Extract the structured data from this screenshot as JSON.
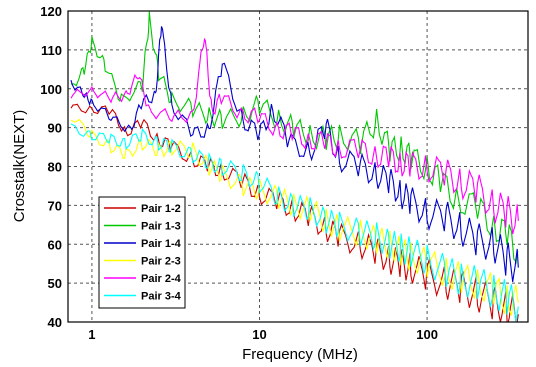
{
  "chart_data": {
    "type": "line",
    "title": "",
    "xlabel": "Frequency (MHz)",
    "ylabel": "Crosstalk(NEXT)",
    "xscale": "log",
    "xlim": [
      0.72,
      400
    ],
    "ylim": [
      40,
      120
    ],
    "xticks": [
      {
        "value": 1,
        "label": "1"
      },
      {
        "value": 10,
        "label": "10"
      },
      {
        "value": 100,
        "label": "100"
      }
    ],
    "yticks": [
      40,
      50,
      60,
      70,
      80,
      90,
      100,
      110,
      120
    ],
    "grid": true,
    "legend_position": "bottom-left",
    "series": [
      {
        "name": "Pair 1-2",
        "color": "#cc0000",
        "points": [
          [
            0.75,
            95
          ],
          [
            1,
            95
          ],
          [
            1.3,
            94
          ],
          [
            1.6,
            89
          ],
          [
            2,
            91
          ],
          [
            2.5,
            87
          ],
          [
            3,
            85
          ],
          [
            4,
            82
          ],
          [
            5,
            80
          ],
          [
            6,
            79
          ],
          [
            8,
            76
          ],
          [
            10,
            73
          ],
          [
            13,
            71
          ],
          [
            16,
            69
          ],
          [
            20,
            67
          ],
          [
            25,
            64
          ],
          [
            30,
            62
          ],
          [
            40,
            60
          ],
          [
            50,
            58
          ],
          [
            60,
            56
          ],
          [
            70,
            55
          ],
          [
            80,
            54
          ],
          [
            100,
            52
          ],
          [
            130,
            50
          ],
          [
            160,
            49
          ],
          [
            200,
            47
          ],
          [
            250,
            45
          ],
          [
            300,
            43
          ],
          [
            350,
            42
          ]
        ]
      },
      {
        "name": "Pair 1-3",
        "color": "#00c800",
        "points": [
          [
            0.75,
            100
          ],
          [
            0.9,
            105
          ],
          [
            1,
            112
          ],
          [
            1.2,
            106
          ],
          [
            1.5,
            97
          ],
          [
            2,
            101
          ],
          [
            2.2,
            118
          ],
          [
            2.5,
            104
          ],
          [
            3,
            97
          ],
          [
            4,
            95
          ],
          [
            5,
            93
          ],
          [
            6,
            92
          ],
          [
            8,
            93
          ],
          [
            10,
            96
          ],
          [
            13,
            92
          ],
          [
            16,
            90
          ],
          [
            20,
            88
          ],
          [
            25,
            87
          ],
          [
            30,
            88
          ],
          [
            40,
            86
          ],
          [
            50,
            92
          ],
          [
            60,
            84
          ],
          [
            70,
            85
          ],
          [
            80,
            82
          ],
          [
            100,
            80
          ],
          [
            120,
            76
          ],
          [
            150,
            72
          ],
          [
            200,
            69
          ],
          [
            250,
            65
          ],
          [
            300,
            62
          ],
          [
            350,
            58
          ]
        ]
      },
      {
        "name": "Pair 1-4",
        "color": "#0000cc",
        "points": [
          [
            0.75,
            102
          ],
          [
            0.9,
            98
          ],
          [
            1,
            97
          ],
          [
            1.3,
            92
          ],
          [
            1.7,
            90
          ],
          [
            2,
            96
          ],
          [
            2.4,
            99
          ],
          [
            2.6,
            116
          ],
          [
            3,
            96
          ],
          [
            4,
            88
          ],
          [
            5,
            90
          ],
          [
            6,
            106
          ],
          [
            8,
            92
          ],
          [
            10,
            88
          ],
          [
            12,
            95
          ],
          [
            15,
            86
          ],
          [
            20,
            84
          ],
          [
            25,
            90
          ],
          [
            30,
            82
          ],
          [
            40,
            80
          ],
          [
            50,
            78
          ],
          [
            60,
            76
          ],
          [
            70,
            73
          ],
          [
            80,
            71
          ],
          [
            100,
            68
          ],
          [
            130,
            67
          ],
          [
            160,
            64
          ],
          [
            200,
            61
          ],
          [
            250,
            60
          ],
          [
            300,
            56
          ],
          [
            350,
            54
          ]
        ]
      },
      {
        "name": "Pair 2-3",
        "color": "#ffff00",
        "points": [
          [
            0.75,
            93
          ],
          [
            1,
            88
          ],
          [
            1.3,
            85
          ],
          [
            1.6,
            83
          ],
          [
            2,
            86
          ],
          [
            2.5,
            84
          ],
          [
            3,
            85
          ],
          [
            4,
            84
          ],
          [
            5,
            80
          ],
          [
            6,
            78
          ],
          [
            8,
            75
          ],
          [
            10,
            74
          ],
          [
            13,
            72
          ],
          [
            16,
            70
          ],
          [
            20,
            69
          ],
          [
            25,
            66
          ],
          [
            30,
            64
          ],
          [
            40,
            63
          ],
          [
            50,
            61
          ],
          [
            60,
            60
          ],
          [
            70,
            58
          ],
          [
            80,
            57
          ],
          [
            100,
            55
          ],
          [
            130,
            53
          ],
          [
            160,
            51
          ],
          [
            200,
            50
          ],
          [
            250,
            48
          ],
          [
            300,
            46
          ],
          [
            350,
            45
          ]
        ]
      },
      {
        "name": "Pair 2-4",
        "color": "#ff00ff",
        "points": [
          [
            0.75,
            98
          ],
          [
            1,
            100
          ],
          [
            1.3,
            97
          ],
          [
            1.6,
            99
          ],
          [
            1.9,
            103
          ],
          [
            2.2,
            95
          ],
          [
            3,
            92
          ],
          [
            4,
            94
          ],
          [
            4.7,
            113
          ],
          [
            5.2,
            95
          ],
          [
            6,
            97
          ],
          [
            8,
            94
          ],
          [
            10,
            92
          ],
          [
            13,
            90
          ],
          [
            16,
            88
          ],
          [
            20,
            87
          ],
          [
            25,
            86
          ],
          [
            30,
            85
          ],
          [
            40,
            84
          ],
          [
            50,
            83
          ],
          [
            60,
            82
          ],
          [
            70,
            81
          ],
          [
            80,
            80
          ],
          [
            100,
            80
          ],
          [
            130,
            78
          ],
          [
            160,
            76
          ],
          [
            200,
            74
          ],
          [
            250,
            70
          ],
          [
            300,
            68
          ],
          [
            350,
            66
          ]
        ]
      },
      {
        "name": "Pair 3-4",
        "color": "#00ffff",
        "points": [
          [
            0.75,
            90
          ],
          [
            1,
            88
          ],
          [
            1.3,
            87
          ],
          [
            1.6,
            86
          ],
          [
            2,
            88
          ],
          [
            2.5,
            86
          ],
          [
            3,
            85
          ],
          [
            4,
            83
          ],
          [
            5,
            81
          ],
          [
            6,
            80
          ],
          [
            8,
            78
          ],
          [
            10,
            76
          ],
          [
            13,
            72
          ],
          [
            16,
            70
          ],
          [
            20,
            69
          ],
          [
            25,
            66
          ],
          [
            30,
            65
          ],
          [
            40,
            63
          ],
          [
            50,
            62
          ],
          [
            60,
            60
          ],
          [
            70,
            59
          ],
          [
            80,
            58
          ],
          [
            100,
            56
          ],
          [
            130,
            53
          ],
          [
            160,
            51
          ],
          [
            200,
            50
          ],
          [
            250,
            48
          ],
          [
            300,
            46
          ],
          [
            350,
            44
          ]
        ]
      }
    ]
  }
}
